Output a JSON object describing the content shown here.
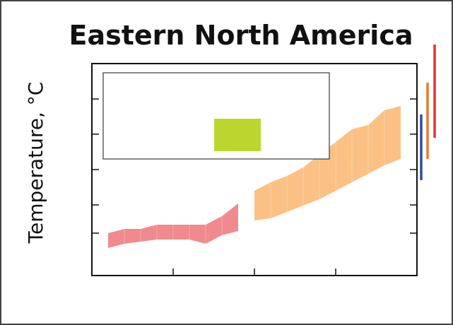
{
  "chart_data": {
    "type": "area",
    "title": "Eastern North America",
    "xlabel": "",
    "ylabel": "Temperature, °C",
    "grid": false,
    "legend": "top-left",
    "xlim": [
      0,
      100
    ],
    "ylim": [
      0,
      100
    ],
    "series": [
      {
        "color": "#f08a8e",
        "x": [
          5,
          10,
          15,
          20,
          25,
          30,
          35,
          40,
          45
        ],
        "lower": [
          13,
          15,
          16,
          17,
          17,
          17,
          15,
          19,
          21
        ],
        "upper": [
          20,
          22,
          22,
          24,
          24,
          24,
          24,
          28,
          34
        ]
      },
      {
        "color": "#fbc184",
        "x": [
          50,
          55,
          60,
          65,
          70,
          75,
          80,
          85,
          90,
          95
        ],
        "lower": [
          26,
          27,
          30,
          33,
          36,
          40,
          44,
          48,
          52,
          55
        ],
        "upper": [
          40,
          44,
          47,
          51,
          57,
          63,
          69,
          71,
          78,
          80
        ]
      }
    ],
    "legend_entries": [
      {
        "color": "#bdd62f"
      }
    ],
    "side_bars": [
      {
        "color": "#2d4ea3",
        "y_range": [
          45,
          76
        ]
      },
      {
        "color": "#e87a2d",
        "y_range": [
          55,
          91
        ]
      },
      {
        "color": "#e8322d",
        "y_range": [
          65,
          109
        ]
      }
    ]
  }
}
